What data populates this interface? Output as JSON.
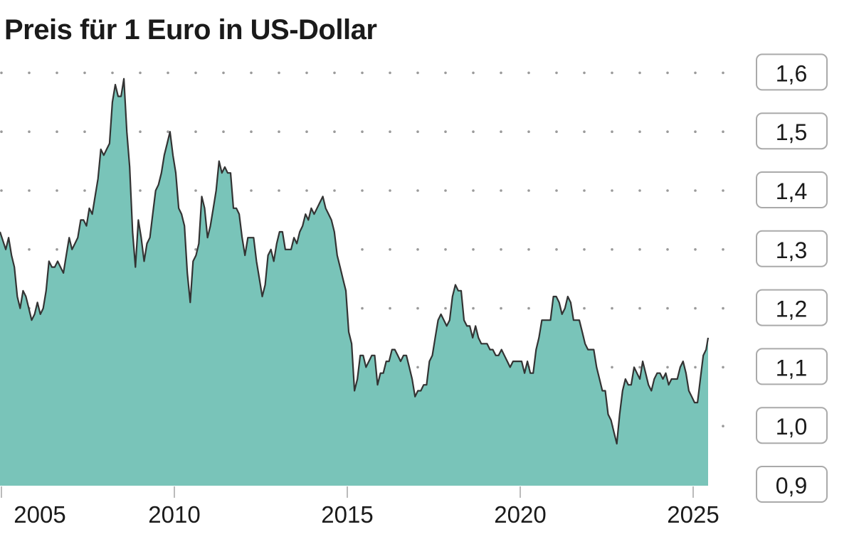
{
  "chart_data": {
    "type": "area",
    "title": "Preis für 1 Euro in US-Dollar",
    "xlabel": "",
    "ylabel": "",
    "ylim": [
      0.9,
      1.6
    ],
    "y_ticks": [
      "1,6",
      "1,5",
      "1,4",
      "1,3",
      "1,2",
      "1,1",
      "1,0",
      "0,9"
    ],
    "y_tick_values": [
      1.6,
      1.5,
      1.4,
      1.3,
      1.2,
      1.1,
      1.0,
      0.9
    ],
    "x_ticks": [
      "2005",
      "2010",
      "2015",
      "2020",
      "2025"
    ],
    "grid": "dotted horizontal",
    "colors": {
      "fill": "#79c4b9",
      "line": "#333333",
      "grid": "#9a9a9a"
    },
    "series_monthly": {
      "2005": [
        1.33,
        1.3,
        1.32,
        1.29,
        1.27,
        1.22,
        1.2,
        1.23,
        1.22,
        1.2,
        1.18,
        1.19
      ],
      "2006": [
        1.21,
        1.19,
        1.2,
        1.23,
        1.28,
        1.27,
        1.27,
        1.28,
        1.27,
        1.26,
        1.29,
        1.32
      ],
      "2007": [
        1.3,
        1.31,
        1.32,
        1.35,
        1.35,
        1.34,
        1.37,
        1.36,
        1.39,
        1.42,
        1.47,
        1.46
      ],
      "2008": [
        1.47,
        1.48,
        1.55,
        1.58,
        1.56,
        1.56,
        1.59,
        1.5,
        1.44,
        1.33,
        1.27,
        1.35
      ],
      "2009": [
        1.32,
        1.28,
        1.31,
        1.32,
        1.36,
        1.4,
        1.41,
        1.43,
        1.46,
        1.48,
        1.5,
        1.46
      ],
      "2010": [
        1.43,
        1.37,
        1.36,
        1.34,
        1.26,
        1.21,
        1.28,
        1.29,
        1.31,
        1.39,
        1.37,
        1.32
      ],
      "2011": [
        1.34,
        1.37,
        1.4,
        1.45,
        1.43,
        1.44,
        1.43,
        1.43,
        1.37,
        1.37,
        1.36,
        1.32
      ],
      "2012": [
        1.29,
        1.32,
        1.32,
        1.32,
        1.28,
        1.25,
        1.22,
        1.24,
        1.29,
        1.3,
        1.28,
        1.31
      ],
      "2013": [
        1.33,
        1.33,
        1.3,
        1.3,
        1.3,
        1.32,
        1.31,
        1.33,
        1.34,
        1.36,
        1.35,
        1.37
      ],
      "2014": [
        1.36,
        1.37,
        1.38,
        1.39,
        1.37,
        1.36,
        1.35,
        1.33,
        1.29,
        1.27,
        1.25,
        1.23
      ],
      "2015": [
        1.16,
        1.14,
        1.06,
        1.08,
        1.12,
        1.12,
        1.1,
        1.11,
        1.12,
        1.12,
        1.07,
        1.09
      ],
      "2016": [
        1.09,
        1.11,
        1.11,
        1.13,
        1.13,
        1.12,
        1.11,
        1.12,
        1.12,
        1.1,
        1.08,
        1.05
      ],
      "2017": [
        1.06,
        1.06,
        1.07,
        1.07,
        1.11,
        1.12,
        1.15,
        1.18,
        1.19,
        1.18,
        1.17,
        1.18
      ],
      "2018": [
        1.22,
        1.24,
        1.23,
        1.23,
        1.18,
        1.17,
        1.17,
        1.15,
        1.17,
        1.15,
        1.14,
        1.14
      ],
      "2019": [
        1.14,
        1.13,
        1.13,
        1.12,
        1.12,
        1.13,
        1.12,
        1.11,
        1.1,
        1.11,
        1.11,
        1.11
      ],
      "2020": [
        1.11,
        1.09,
        1.11,
        1.09,
        1.09,
        1.13,
        1.15,
        1.18,
        1.18,
        1.18,
        1.18,
        1.22
      ],
      "2021": [
        1.22,
        1.21,
        1.19,
        1.2,
        1.22,
        1.21,
        1.18,
        1.18,
        1.18,
        1.16,
        1.14,
        1.13
      ],
      "2022": [
        1.13,
        1.13,
        1.1,
        1.08,
        1.06,
        1.06,
        1.02,
        1.01,
        0.99,
        0.97,
        1.02,
        1.06
      ],
      "2023": [
        1.08,
        1.07,
        1.07,
        1.1,
        1.09,
        1.08,
        1.11,
        1.09,
        1.07,
        1.06,
        1.08,
        1.09
      ],
      "2024": [
        1.09,
        1.08,
        1.09,
        1.07,
        1.08,
        1.08,
        1.08,
        1.1,
        1.11,
        1.09,
        1.06,
        1.05
      ],
      "2025": [
        1.04,
        1.04,
        1.08,
        1.12,
        1.13,
        1.15
      ]
    }
  }
}
